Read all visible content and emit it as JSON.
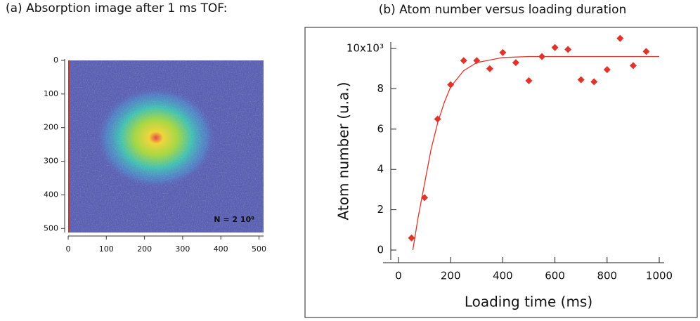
{
  "chart_data": [
    {
      "type": "image",
      "title": "(a) Absorption image after 1 ms TOF:",
      "annotation": "N = 2 10⁸",
      "xlim": [
        0,
        512
      ],
      "ylim": [
        512,
        0
      ],
      "xticks": [
        0,
        100,
        200,
        300,
        400,
        500
      ],
      "yticks": [
        0,
        100,
        200,
        300,
        400,
        500
      ]
    },
    {
      "type": "scatter",
      "title": "(b) Atom number versus loading duration",
      "xlabel": "Loading time (ms)",
      "ylabel": "Atom number (u.a.)",
      "xlim": [
        -60,
        1020
      ],
      "ylim": [
        -0.5,
        10.3
      ],
      "xticks": [
        0,
        200,
        400,
        600,
        800,
        1000
      ],
      "yticks": [
        0,
        2,
        4,
        6,
        8,
        {
          "value": 10,
          "label": "10x10³"
        }
      ],
      "series": [
        {
          "kind": "points",
          "color": "#e2332b",
          "x": [
            50,
            100,
            150,
            200,
            250,
            300,
            350,
            400,
            450,
            500,
            550,
            600,
            650,
            700,
            750,
            800,
            850,
            900,
            950
          ],
          "values": [
            0.6,
            2.6,
            6.5,
            8.2,
            9.4,
            9.4,
            9.0,
            9.8,
            9.3,
            8.4,
            9.6,
            10.05,
            9.95,
            8.45,
            8.35,
            8.95,
            10.5,
            9.15,
            9.85
          ]
        },
        {
          "kind": "fit",
          "color": "#e2332b",
          "x": [
            55,
            75,
            100,
            125,
            150,
            175,
            200,
            250,
            300,
            400,
            500,
            700,
            1000
          ],
          "values": [
            0,
            1.6,
            3.3,
            5.0,
            6.3,
            7.3,
            8.1,
            8.9,
            9.3,
            9.55,
            9.6,
            9.6,
            9.6
          ]
        }
      ]
    }
  ]
}
